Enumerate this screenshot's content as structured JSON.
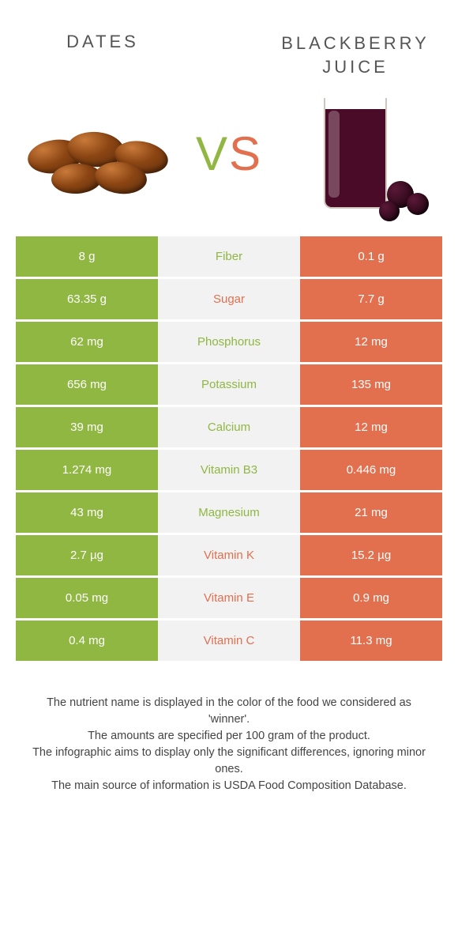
{
  "colors": {
    "left": "#8fb741",
    "right": "#e2704f",
    "label_bg": "#f2f2f2",
    "text_white": "#ffffff"
  },
  "header": {
    "left_title": "Dates",
    "right_title_l1": "Blackberry",
    "right_title_l2": "Juice",
    "vs_v": "V",
    "vs_s": "S"
  },
  "rows": [
    {
      "left": "8 g",
      "label": "Fiber",
      "right": "0.1 g",
      "winner": "left"
    },
    {
      "left": "63.35 g",
      "label": "Sugar",
      "right": "7.7 g",
      "winner": "right"
    },
    {
      "left": "62 mg",
      "label": "Phosphorus",
      "right": "12 mg",
      "winner": "left"
    },
    {
      "left": "656 mg",
      "label": "Potassium",
      "right": "135 mg",
      "winner": "left"
    },
    {
      "left": "39 mg",
      "label": "Calcium",
      "right": "12 mg",
      "winner": "left"
    },
    {
      "left": "1.274 mg",
      "label": "Vitamin B3",
      "right": "0.446 mg",
      "winner": "left"
    },
    {
      "left": "43 mg",
      "label": "Magnesium",
      "right": "21 mg",
      "winner": "left"
    },
    {
      "left": "2.7 µg",
      "label": "Vitamin K",
      "right": "15.2 µg",
      "winner": "right"
    },
    {
      "left": "0.05 mg",
      "label": "Vitamin E",
      "right": "0.9 mg",
      "winner": "right"
    },
    {
      "left": "0.4 mg",
      "label": "Vitamin C",
      "right": "11.3 mg",
      "winner": "right"
    }
  ],
  "footer": {
    "l1": "The nutrient name is displayed in the color of the food we considered as 'winner'.",
    "l2": "The amounts are specified per 100 gram of the product.",
    "l3": "The infographic aims to display only the significant differences, ignoring minor ones.",
    "l4": "The main source of information is USDA Food Composition Database."
  }
}
